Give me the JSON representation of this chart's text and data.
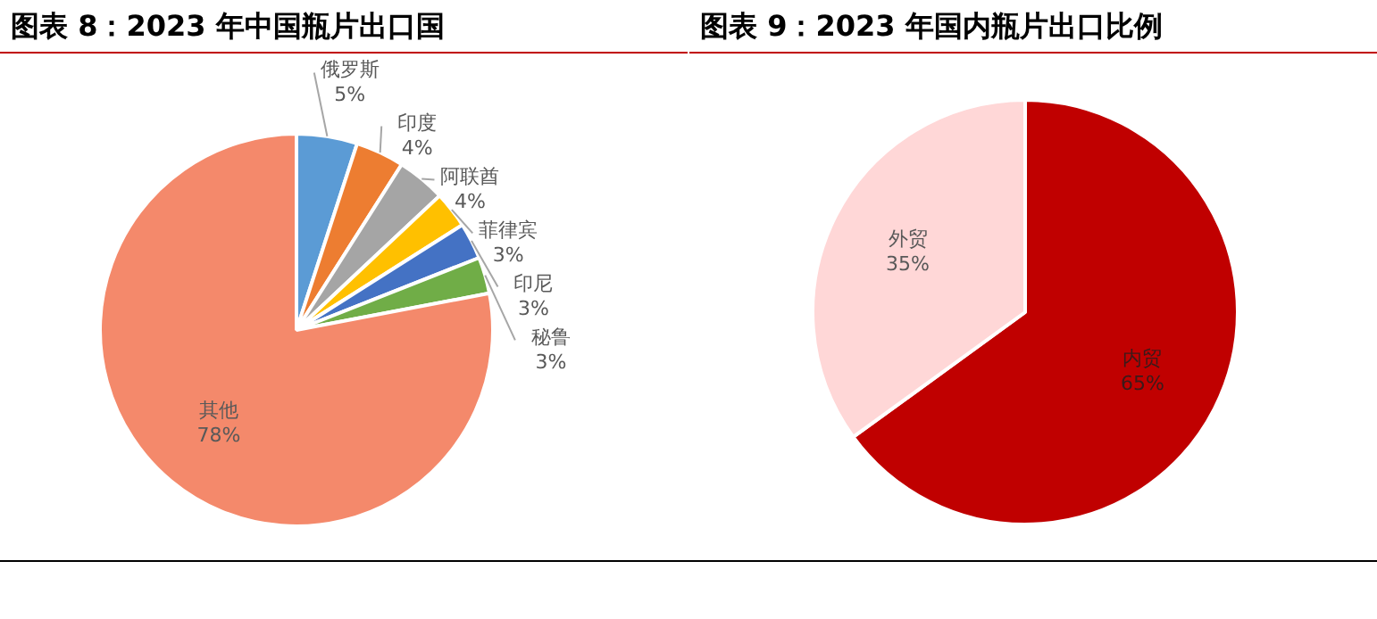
{
  "chart_data": [
    {
      "type": "pie",
      "title": "图表 8：2023 年中国瓶片出口国",
      "categories": [
        "俄罗斯",
        "印度",
        "阿联酋",
        "菲律宾",
        "印尼",
        "秘鲁",
        "其他"
      ],
      "values": [
        5,
        4,
        4,
        3,
        3,
        3,
        78
      ],
      "value_labels": [
        "5%",
        "4%",
        "4%",
        "3%",
        "3%",
        "3%",
        "78%"
      ],
      "colors": [
        "#5b9bd5",
        "#ed7d31",
        "#a5a5a5",
        "#ffc000",
        "#4472c4",
        "#70ad47",
        "#f4896b"
      ]
    },
    {
      "type": "pie",
      "title": "图表 9：2023 年国内瓶片出口比例",
      "categories": [
        "内贸",
        "外贸"
      ],
      "values": [
        65,
        35
      ],
      "value_labels": [
        "65%",
        "35%"
      ],
      "colors": [
        "#c00000",
        "#ffd7d7"
      ]
    }
  ]
}
